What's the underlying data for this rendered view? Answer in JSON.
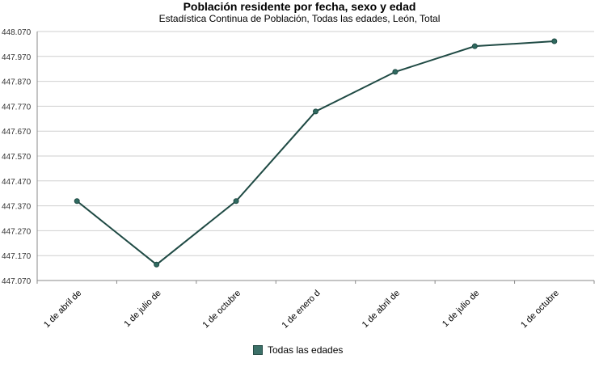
{
  "chart_data": {
    "type": "line",
    "title": "Población residente por fecha, sexo y edad",
    "subtitle": "Estadística Continua de Población, Todas las edades, León, Total",
    "categories": [
      "1 de abril de",
      "1 de julio de",
      "1 de octubre",
      "1 de enero d",
      "1 de abril de",
      "1 de julio de",
      "1 de octubre"
    ],
    "series": [
      {
        "name": "Todas las edades",
        "values": [
          447389,
          447134,
          447389,
          447749,
          447908,
          448011,
          448031
        ]
      }
    ],
    "ylim": [
      447070,
      448070
    ],
    "yticks": [
      448070,
      447970,
      447870,
      447770,
      447670,
      447570,
      447470,
      447370,
      447270,
      447170,
      447070
    ],
    "ytick_labels": [
      "448.070",
      "447.970",
      "447.870",
      "447.770",
      "447.670",
      "447.570",
      "447.470",
      "447.370",
      "447.270",
      "447.170",
      "447.070"
    ],
    "grid": true,
    "legend_position": "bottom",
    "line_color": "#1f4a44",
    "marker_color": "#2f6a60"
  }
}
